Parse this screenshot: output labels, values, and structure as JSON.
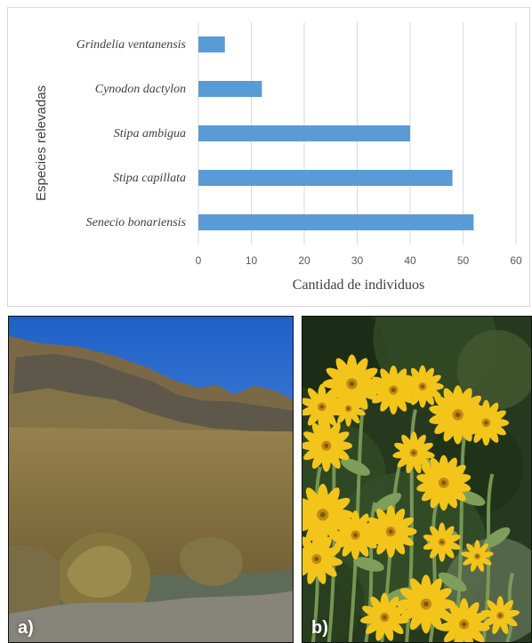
{
  "chart_data": {
    "type": "bar",
    "orientation": "horizontal",
    "categories": [
      "Grindelia ventanensis",
      "Cynodon dactylon",
      "Stipa ambigua",
      "Stipa capillata",
      "Senecio bonariensis"
    ],
    "values": [
      5,
      12,
      40,
      48,
      52
    ],
    "xlabel": "Cantidad de individuos",
    "ylabel": "Especies relevadas",
    "xlim": [
      0,
      60
    ],
    "xticks": [
      "0",
      "10",
      "20",
      "30",
      "40",
      "50",
      "60"
    ],
    "grid": true,
    "legend": "none",
    "bar_color": "#5b9bd5"
  },
  "photos": {
    "a": {
      "label": "a)"
    },
    "b": {
      "label": "b)"
    }
  },
  "colors": {
    "grid": "#d9d9d9",
    "text": "#404040",
    "tick_text": "#595959"
  }
}
